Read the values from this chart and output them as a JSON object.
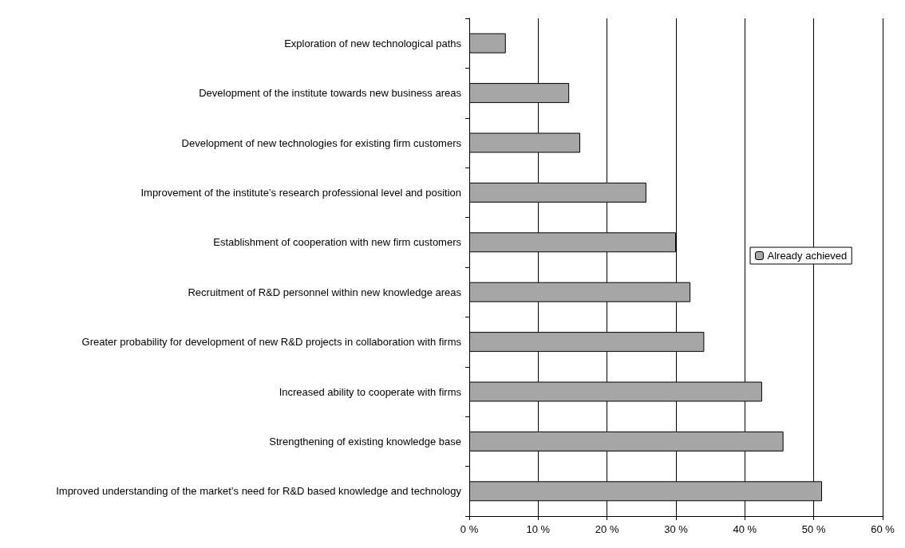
{
  "chart_data": {
    "type": "bar",
    "orientation": "horizontal",
    "categories": [
      "Exploration of new technological paths",
      "Development of the institute towards new business areas",
      "Development of new technologies for existing firm customers",
      "Improvement of the institute’s research professional level and position",
      "Establishment of cooperation with new firm customers",
      "Recruitment of R&D personnel within new knowledge areas",
      "Greater probability for development of new R&D projects in collaboration with firms",
      "Increased ability to cooperate with firms",
      "Strengthening of existing knowledge base",
      "Improved understanding of the market’s need for R&D based knowledge and technology"
    ],
    "series": [
      {
        "name": "Already achieved",
        "color": "#a6a6a6",
        "values": [
          5.3,
          14.5,
          16.1,
          25.7,
          30,
          32.1,
          34.1,
          42.5,
          45.6,
          51.2
        ]
      }
    ],
    "xlim": [
      0,
      60
    ],
    "xticks": [
      {
        "value": 0,
        "label": "0 %"
      },
      {
        "value": 10,
        "label": "10 %"
      },
      {
        "value": 20,
        "label": "20 %"
      },
      {
        "value": 30,
        "label": "30 %"
      },
      {
        "value": 40,
        "label": "40 %"
      },
      {
        "value": 50,
        "label": "50 %"
      },
      {
        "value": 60,
        "label": "60 %"
      }
    ],
    "grid": "x",
    "legend": "right"
  }
}
